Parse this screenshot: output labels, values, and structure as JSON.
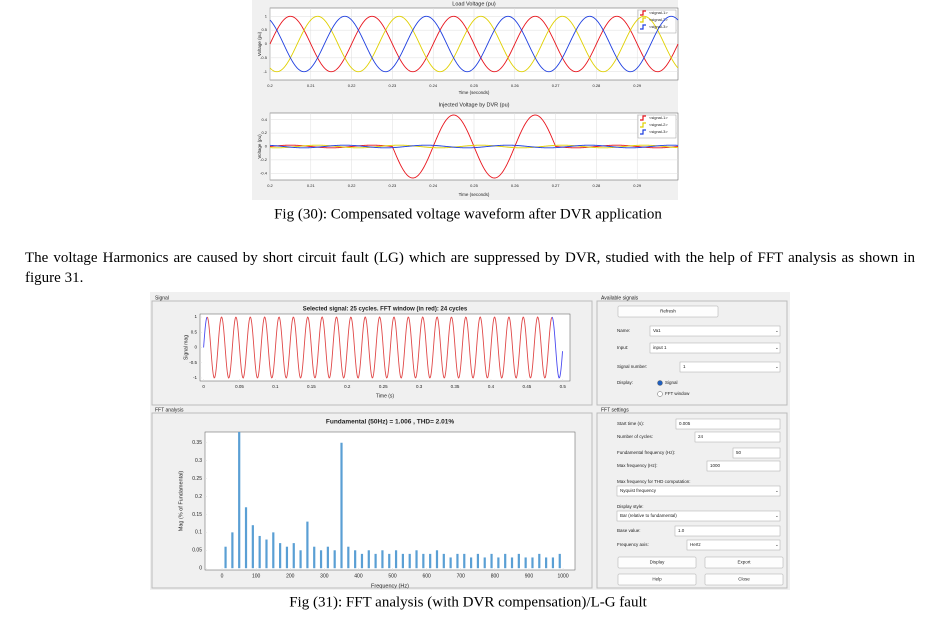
{
  "figure_30": {
    "caption": "Fig (30): Compensated voltage waveform after DVR application",
    "load_voltage": {
      "type": "waveform",
      "title": "Load Voltage (pu)",
      "xlabel": "Time (seconds)",
      "ylabel": "Voltage (pu)",
      "xlim": [
        0.2,
        0.3
      ],
      "ylim": [
        -1.3,
        1.3
      ],
      "xticks": [
        0.2,
        0.21,
        0.22,
        0.23,
        0.24,
        0.25,
        0.26,
        0.27,
        0.28,
        0.29
      ],
      "yticks": [
        1,
        0.5,
        0,
        -0.5,
        -1
      ],
      "grid": true,
      "legend": "northeast",
      "series": [
        {
          "name": "<signal-1>",
          "color": "#e8141c",
          "amplitude": 1,
          "frequency": 50,
          "phase_deg": 0
        },
        {
          "name": "<signal-2>",
          "color": "#e0d000",
          "amplitude": 1,
          "frequency": 50,
          "phase_deg": -120
        },
        {
          "name": "<signal-3>",
          "color": "#1f3fe0",
          "amplitude": 1,
          "frequency": 50,
          "phase_deg": 120
        }
      ]
    },
    "injected_voltage": {
      "type": "waveform",
      "title": "Injected Voltage by DVR (pu)",
      "xlabel": "Time (seconds)",
      "ylabel": "Voltage (pu)",
      "xlim": [
        0.2,
        0.3
      ],
      "ylim": [
        -0.5,
        0.5
      ],
      "xticks": [
        0.2,
        0.21,
        0.22,
        0.23,
        0.24,
        0.25,
        0.26,
        0.27,
        0.28,
        0.29
      ],
      "yticks": [
        0.4,
        0.2,
        0,
        -0.2,
        -0.4
      ],
      "grid": true,
      "legend": "northeast",
      "series": [
        {
          "name": "<signal-1>",
          "color": "#e8141c",
          "amplitude": 0.02,
          "frequency": 50,
          "phase_deg": 0,
          "burst": {
            "start": 0.23,
            "end": 0.27,
            "amplitude": 0.45
          }
        },
        {
          "name": "<signal-2>",
          "color": "#e0d000",
          "amplitude": 0.02,
          "frequency": 50,
          "phase_deg": -120
        },
        {
          "name": "<signal-3>",
          "color": "#1f3fe0",
          "amplitude": 0.02,
          "frequency": 50,
          "phase_deg": 120
        }
      ]
    }
  },
  "paragraph": "The voltage Harmonics are caused by short circuit fault (LG)  which  are suppressed by DVR, studied with the help of FFT analysis as shown in figure 31.",
  "figure_31": {
    "caption": "Fig (31): FFT analysis (with DVR compensation)/L-G fault",
    "signal_panel": {
      "label": "Signal",
      "chart": {
        "type": "waveform",
        "title": "Selected signal: 25 cycles. FFT window (in red): 24 cycles",
        "xlabel": "Time (s)",
        "ylabel": "Signal mag",
        "xlim": [
          -0.005,
          0.51
        ],
        "ylim": [
          -1.1,
          1.1
        ],
        "xticks": [
          0,
          0.05,
          0.1,
          0.15,
          0.2,
          0.25,
          0.3,
          0.35,
          0.4,
          0.45,
          0.5
        ],
        "yticks": [
          1,
          0.5,
          0,
          -0.5,
          -1
        ],
        "grid": false,
        "series": [
          {
            "color": "#4a4af0",
            "amplitude": 1,
            "frequency": 50,
            "phase_deg": 0,
            "window_color": "#e04848"
          }
        ]
      }
    },
    "fft_panel": {
      "label": "FFT analysis",
      "chart": {
        "type": "bar",
        "title": "Fundamental (50Hz) = 1.006 , THD= 2.01%",
        "xlabel": "Frequency (Hz)",
        "ylabel": "Mag (% of Fundamental)",
        "xlim": [
          -50,
          1035
        ],
        "ylim": [
          -0.005,
          0.38
        ],
        "xticks": [
          0,
          100,
          200,
          300,
          400,
          500,
          600,
          700,
          800,
          900,
          1000
        ],
        "yticks": [
          0,
          0.05,
          0.1,
          0.15,
          0.2,
          0.25,
          0.3,
          0.35
        ],
        "grid": false,
        "color": "#5a9fd4",
        "x": [
          10,
          30,
          50,
          70,
          90,
          110,
          130,
          150,
          170,
          190,
          210,
          230,
          250,
          270,
          290,
          310,
          330,
          350,
          370,
          390,
          410,
          430,
          450,
          470,
          490,
          510,
          530,
          550,
          570,
          590,
          610,
          630,
          650,
          670,
          690,
          710,
          730,
          750,
          770,
          790,
          810,
          830,
          850,
          870,
          890,
          910,
          930,
          950,
          970,
          990
        ],
        "values": [
          0.06,
          0.1,
          0.4,
          0.17,
          0.12,
          0.09,
          0.08,
          0.1,
          0.07,
          0.06,
          0.07,
          0.05,
          0.13,
          0.06,
          0.05,
          0.06,
          0.05,
          0.35,
          0.06,
          0.05,
          0.04,
          0.05,
          0.04,
          0.05,
          0.04,
          0.05,
          0.04,
          0.04,
          0.05,
          0.04,
          0.04,
          0.05,
          0.04,
          0.03,
          0.04,
          0.04,
          0.03,
          0.04,
          0.03,
          0.04,
          0.03,
          0.04,
          0.03,
          0.04,
          0.03,
          0.03,
          0.04,
          0.03,
          0.03,
          0.04
        ]
      }
    },
    "available_signals": {
      "label": "Available signals",
      "refresh": "Refresh",
      "name_label": "Name:",
      "name": "Va1",
      "input_label": "Input:",
      "input": "input 1",
      "signal_number_label": "Signal number:",
      "signal_number": 1,
      "display_label": "Display:",
      "display_options": [
        "Signal",
        "FFT window"
      ]
    },
    "fft_settings": {
      "label": "FFT settings",
      "start_time_label": "Start time (s):",
      "start_time": 0.005,
      "cycles_label": "Number of cycles:",
      "cycles": 24,
      "fundamental_label": "Fundamental frequency (Hz):",
      "fundamental": 50,
      "max_frequency_label": "Max frequency (Hz):",
      "max_frequency": 1000,
      "thd_max_label": "Max frequency for THD computation:",
      "thd_max": "Nyquist frequency",
      "display_style_label": "Display style:",
      "display_style": "Bar (relative to fundamental)",
      "base_value_label": "Base value:",
      "base_value": "1.0",
      "frequency_axis_label": "Frequency axis:",
      "frequency_axis": "Hertz",
      "buttons": [
        "Display",
        "Export",
        "Help",
        "Close"
      ]
    }
  }
}
